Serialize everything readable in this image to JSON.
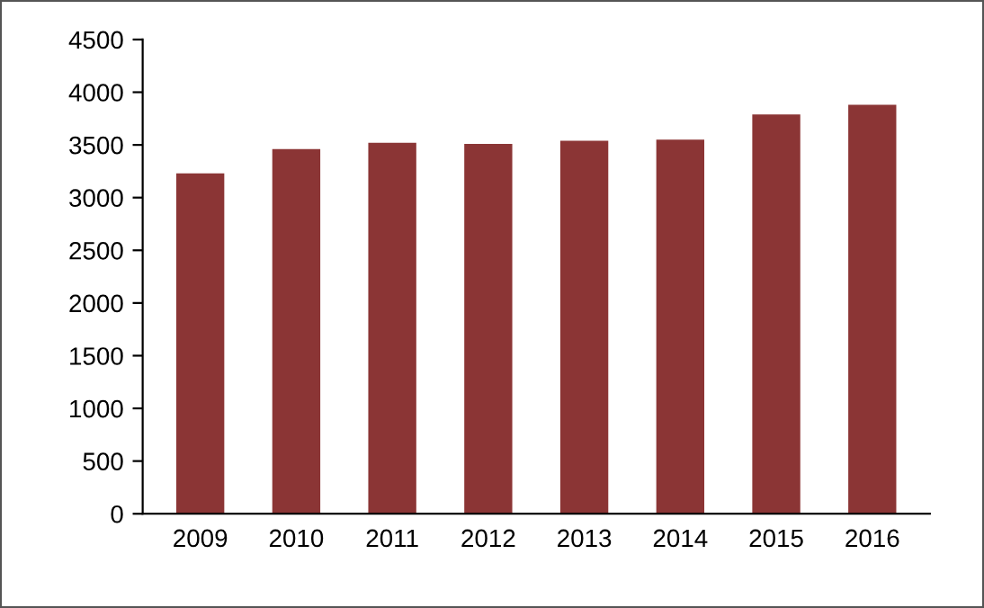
{
  "chart_data": {
    "type": "bar",
    "categories": [
      "2009",
      "2010",
      "2011",
      "2012",
      "2013",
      "2014",
      "2015",
      "2016"
    ],
    "values": [
      3230,
      3460,
      3520,
      3510,
      3540,
      3550,
      3790,
      3880
    ],
    "color": "#8b3535",
    "ylim": [
      0,
      4500
    ],
    "yticks": [
      0,
      500,
      1000,
      1500,
      2000,
      2500,
      3000,
      3500,
      4000,
      4500
    ],
    "grid": false
  }
}
